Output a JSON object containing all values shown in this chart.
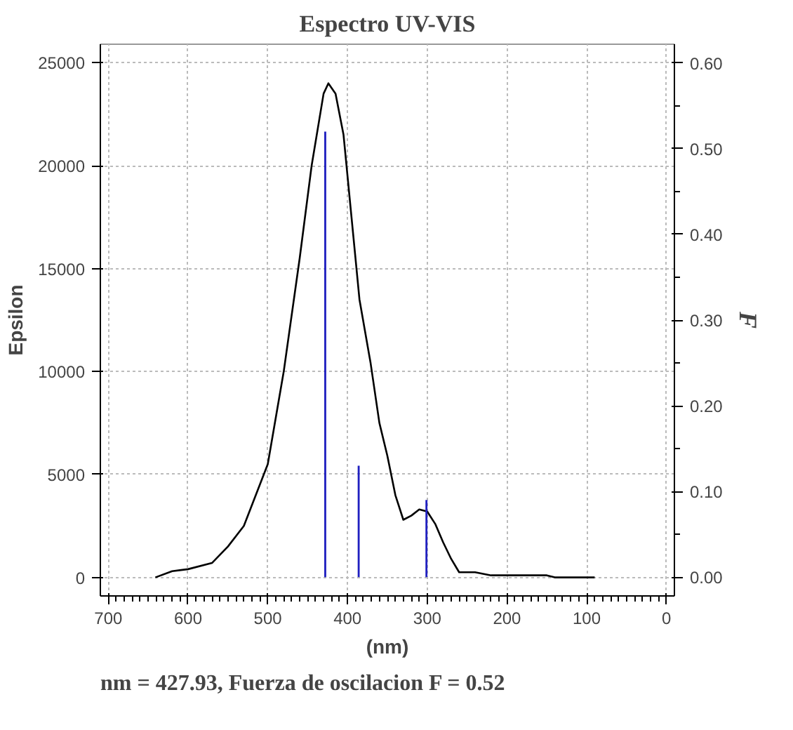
{
  "chart_data": {
    "type": "line",
    "title": "Espectro UV-VIS",
    "xlabel": "(nm)",
    "ylabel": "Epsilon",
    "y2label": "F",
    "xlim": [
      710,
      -10
    ],
    "xticks": [
      700,
      600,
      500,
      400,
      300,
      200,
      100,
      0
    ],
    "ylim": [
      -900,
      25900
    ],
    "yticks": [
      0,
      5000,
      10000,
      15000,
      20000,
      25000
    ],
    "y2lim": [
      -0.022,
      0.622
    ],
    "y2ticks": [
      {
        "value": 0,
        "label": "0.00"
      },
      {
        "value": 0.1,
        "label": "0.10"
      },
      {
        "value": 0.2,
        "label": "0.20"
      },
      {
        "value": 0.3,
        "label": "0.30"
      },
      {
        "value": 0.4,
        "label": "0.40"
      },
      {
        "value": 0.5,
        "label": "0.50"
      },
      {
        "value": 0.6,
        "label": "0.60"
      }
    ],
    "grid": true,
    "line_style": "solid",
    "series": [
      {
        "color": "#000000",
        "x": [
          641,
          620,
          600,
          570,
          550,
          530,
          500,
          480,
          460,
          445,
          430,
          424,
          415,
          405,
          395,
          385,
          371,
          360,
          350,
          340,
          330,
          320,
          310,
          300,
          290,
          280,
          270,
          260,
          240,
          220,
          180,
          150,
          140,
          120,
          90
        ],
        "values": [
          0,
          300,
          400,
          700,
          1500,
          2500,
          5500,
          10000,
          15500,
          20000,
          23500,
          24000,
          23500,
          21500,
          17500,
          13500,
          10400,
          7500,
          5900,
          4000,
          2800,
          3000,
          3300,
          3200,
          2600,
          1700,
          900,
          250,
          250,
          100,
          100,
          100,
          0,
          0,
          0
        ]
      },
      {
        "type": "bar",
        "axis": "y2",
        "color": "#2020c0",
        "x": [
          427.93,
          386,
          301
        ],
        "values": [
          0.52,
          0.13,
          0.09
        ]
      }
    ],
    "annotations": [
      "nm = 427.93, Fuerza de oscilacion F = 0.52"
    ]
  }
}
